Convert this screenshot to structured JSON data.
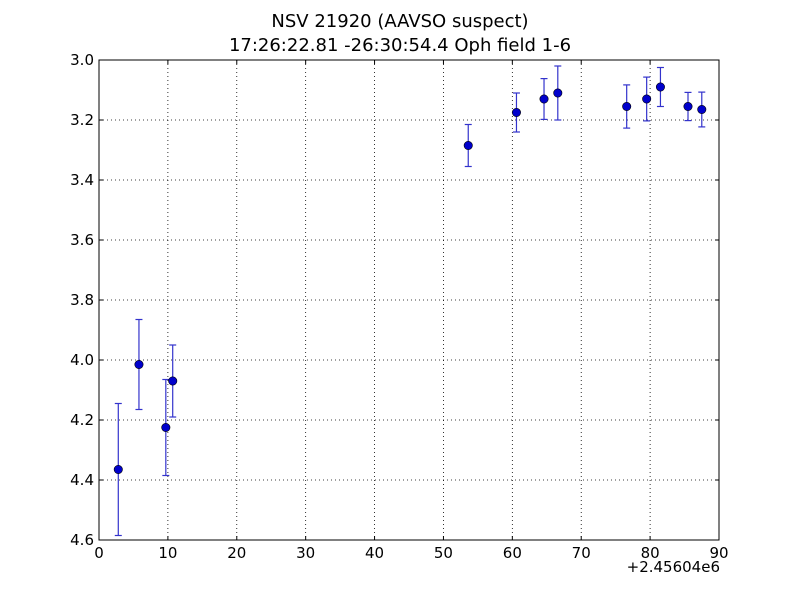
{
  "chart_data": {
    "type": "scatter",
    "title": "NSV 21920 (AAVSO suspect)",
    "subtitle": "17:26:22.81 -26:30:54.4 Oph field 1-6",
    "xlabel": "",
    "ylabel": "",
    "x_offset_label": "+2.45604e6",
    "xlim": [
      0,
      90
    ],
    "ylim": [
      4.6,
      3.0
    ],
    "y_inverted": true,
    "grid": true,
    "x_ticks": [
      "0",
      "10",
      "20",
      "30",
      "40",
      "50",
      "60",
      "70",
      "80",
      "90"
    ],
    "y_ticks": [
      "3.0",
      "3.2",
      "3.4",
      "3.6",
      "3.8",
      "4.0",
      "4.2",
      "4.4",
      "4.6"
    ],
    "marker_color": "#0000cc",
    "errorbar_color": "#3333cc",
    "points": [
      {
        "x": 2.8,
        "y": 4.365,
        "err": 0.22
      },
      {
        "x": 5.8,
        "y": 4.015,
        "err": 0.15
      },
      {
        "x": 9.7,
        "y": 4.225,
        "err": 0.16
      },
      {
        "x": 10.7,
        "y": 4.07,
        "err": 0.12
      },
      {
        "x": 53.6,
        "y": 3.285,
        "err": 0.07
      },
      {
        "x": 60.6,
        "y": 3.175,
        "err": 0.065
      },
      {
        "x": 64.6,
        "y": 3.13,
        "err": 0.068
      },
      {
        "x": 66.6,
        "y": 3.11,
        "err": 0.09
      },
      {
        "x": 76.6,
        "y": 3.155,
        "err": 0.072
      },
      {
        "x": 79.5,
        "y": 3.13,
        "err": 0.073
      },
      {
        "x": 81.5,
        "y": 3.09,
        "err": 0.065
      },
      {
        "x": 85.5,
        "y": 3.155,
        "err": 0.047
      },
      {
        "x": 87.5,
        "y": 3.165,
        "err": 0.058
      }
    ]
  }
}
